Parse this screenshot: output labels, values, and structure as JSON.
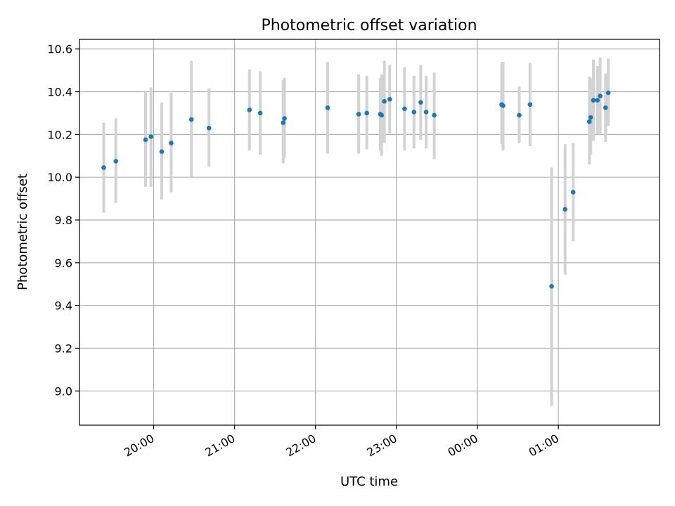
{
  "chart_data": {
    "type": "scatter",
    "title": "Photometric offset variation",
    "xlabel": "UTC time",
    "ylabel": "Photometric offset",
    "xlim": [
      "19:05",
      "02:15"
    ],
    "ylim": [
      8.84,
      10.645
    ],
    "grid": true,
    "x_ticks": [
      "20:00",
      "21:00",
      "22:00",
      "23:00",
      "00:00",
      "01:00"
    ],
    "y_ticks": [
      "9.0",
      "9.2",
      "9.4",
      "9.6",
      "9.8",
      "10.0",
      "10.2",
      "10.4",
      "10.6"
    ],
    "series": [
      {
        "marker_color": "#1f77b4",
        "errorbar_color": "#d3d3d3",
        "points": [
          {
            "x": "19:23",
            "y": 10.045,
            "ylow": 9.835,
            "yhigh": 10.255
          },
          {
            "x": "19:32",
            "y": 10.075,
            "ylow": 9.88,
            "yhigh": 10.275
          },
          {
            "x": "19:54",
            "y": 10.175,
            "ylow": 9.955,
            "yhigh": 10.405
          },
          {
            "x": "19:58",
            "y": 10.19,
            "ylow": 9.955,
            "yhigh": 10.42
          },
          {
            "x": "20:06",
            "y": 10.12,
            "ylow": 9.895,
            "yhigh": 10.35
          },
          {
            "x": "20:13",
            "y": 10.16,
            "ylow": 9.93,
            "yhigh": 10.395
          },
          {
            "x": "20:28",
            "y": 10.27,
            "ylow": 10.0,
            "yhigh": 10.545
          },
          {
            "x": "20:41",
            "y": 10.23,
            "ylow": 10.05,
            "yhigh": 10.415
          },
          {
            "x": "21:11",
            "y": 10.315,
            "ylow": 10.125,
            "yhigh": 10.505
          },
          {
            "x": "21:19",
            "y": 10.3,
            "ylow": 10.105,
            "yhigh": 10.495
          },
          {
            "x": "21:36",
            "y": 10.255,
            "ylow": 10.065,
            "yhigh": 10.455
          },
          {
            "x": "21:37",
            "y": 10.275,
            "ylow": 10.09,
            "yhigh": 10.465
          },
          {
            "x": "22:09",
            "y": 10.325,
            "ylow": 10.11,
            "yhigh": 10.54
          },
          {
            "x": "22:32",
            "y": 10.295,
            "ylow": 10.11,
            "yhigh": 10.48
          },
          {
            "x": "22:38",
            "y": 10.3,
            "ylow": 10.13,
            "yhigh": 10.475
          },
          {
            "x": "22:48",
            "y": 10.295,
            "ylow": 10.125,
            "yhigh": 10.465
          },
          {
            "x": "22:49",
            "y": 10.29,
            "ylow": 10.1,
            "yhigh": 10.48
          },
          {
            "x": "22:51",
            "y": 10.355,
            "ylow": 10.16,
            "yhigh": 10.545
          },
          {
            "x": "22:55",
            "y": 10.365,
            "ylow": 10.205,
            "yhigh": 10.525
          },
          {
            "x": "23:06",
            "y": 10.32,
            "ylow": 10.125,
            "yhigh": 10.515
          },
          {
            "x": "23:13",
            "y": 10.305,
            "ylow": 10.135,
            "yhigh": 10.475
          },
          {
            "x": "23:18",
            "y": 10.35,
            "ylow": 10.175,
            "yhigh": 10.525
          },
          {
            "x": "23:22",
            "y": 10.305,
            "ylow": 10.135,
            "yhigh": 10.475
          },
          {
            "x": "23:28",
            "y": 10.29,
            "ylow": 10.085,
            "yhigh": 10.49
          },
          {
            "x": "00:18",
            "y": 10.34,
            "ylow": 10.155,
            "yhigh": 10.535
          },
          {
            "x": "00:19",
            "y": 10.335,
            "ylow": 10.125,
            "yhigh": 10.54
          },
          {
            "x": "00:31",
            "y": 10.29,
            "ylow": 10.16,
            "yhigh": 10.425
          },
          {
            "x": "00:39",
            "y": 10.34,
            "ylow": 10.145,
            "yhigh": 10.535
          },
          {
            "x": "00:55",
            "y": 9.49,
            "ylow": 8.93,
            "yhigh": 10.045
          },
          {
            "x": "01:05",
            "y": 9.85,
            "ylow": 9.545,
            "yhigh": 10.155
          },
          {
            "x": "01:11",
            "y": 9.93,
            "ylow": 9.7,
            "yhigh": 10.16
          },
          {
            "x": "01:23",
            "y": 10.26,
            "ylow": 10.06,
            "yhigh": 10.47
          },
          {
            "x": "01:24",
            "y": 10.28,
            "ylow": 10.105,
            "yhigh": 10.465
          },
          {
            "x": "01:26",
            "y": 10.36,
            "ylow": 10.17,
            "yhigh": 10.55
          },
          {
            "x": "01:29",
            "y": 10.36,
            "ylow": 10.2,
            "yhigh": 10.52
          },
          {
            "x": "01:31",
            "y": 10.38,
            "ylow": 10.205,
            "yhigh": 10.56
          },
          {
            "x": "01:35",
            "y": 10.325,
            "ylow": 10.165,
            "yhigh": 10.485
          },
          {
            "x": "01:37",
            "y": 10.395,
            "ylow": 10.24,
            "yhigh": 10.555
          }
        ]
      }
    ]
  }
}
